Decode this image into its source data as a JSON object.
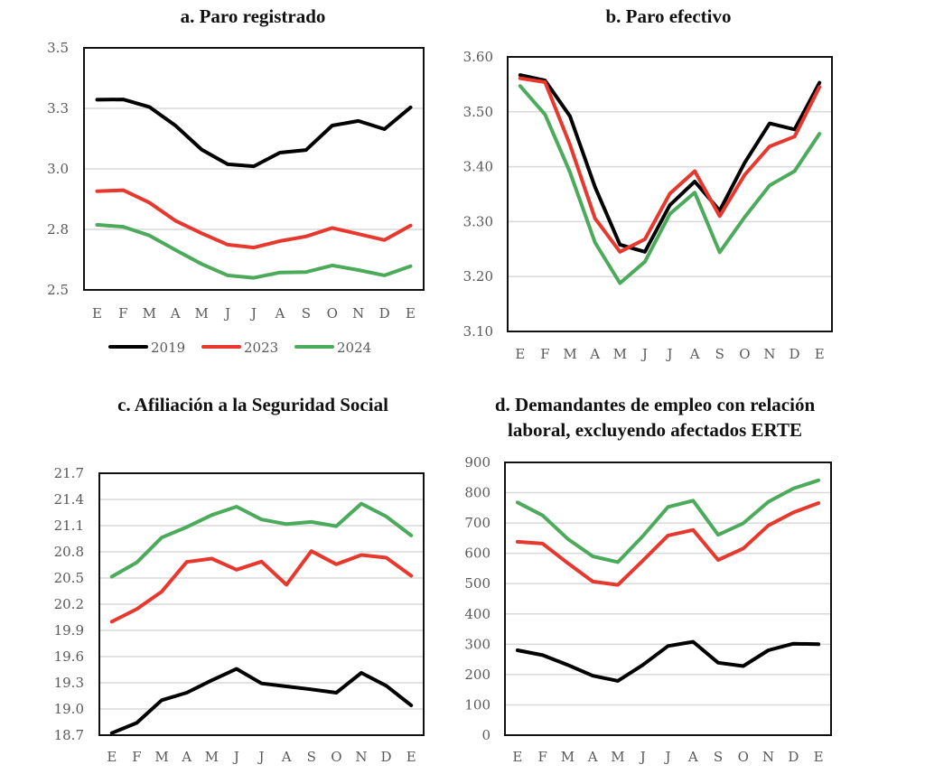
{
  "chart_data": [
    {
      "id": "a",
      "type": "line",
      "title": "a. Paro registrado",
      "xlabel": "",
      "ylabel": "",
      "categories": [
        "E",
        "F",
        "M",
        "A",
        "M",
        "J",
        "J",
        "A",
        "S",
        "O",
        "N",
        "D",
        "E"
      ],
      "ylim": [
        2.5,
        3.5
      ],
      "yticks": [
        2.5,
        2.75,
        3.0,
        3.25,
        3.5
      ],
      "ytick_labels": [
        "2.5",
        "2.8",
        "3.0",
        "3.3",
        "3.5"
      ],
      "grid": true,
      "legend": "bottom",
      "series": [
        {
          "name": "2019",
          "color": "#000000",
          "values": [
            3.286,
            3.287,
            3.256,
            3.179,
            3.08,
            3.019,
            3.011,
            3.067,
            3.078,
            3.179,
            3.198,
            3.164,
            3.254
          ]
        },
        {
          "name": "2023",
          "color": "#e8382d",
          "values": [
            2.908,
            2.912,
            2.861,
            2.786,
            2.734,
            2.687,
            2.675,
            2.702,
            2.721,
            2.756,
            2.731,
            2.706,
            2.766
          ]
        },
        {
          "name": "2024",
          "color": "#4caa5b",
          "values": [
            2.769,
            2.761,
            2.725,
            2.665,
            2.607,
            2.56,
            2.55,
            2.572,
            2.574,
            2.601,
            2.582,
            2.56,
            2.598
          ]
        }
      ]
    },
    {
      "id": "b",
      "type": "line",
      "title": "b. Paro efectivo",
      "xlabel": "",
      "ylabel": "",
      "categories": [
        "E",
        "F",
        "M",
        "A",
        "M",
        "J",
        "J",
        "A",
        "S",
        "O",
        "N",
        "D",
        "E"
      ],
      "ylim": [
        3.1,
        3.6
      ],
      "yticks": [
        3.1,
        3.2,
        3.3,
        3.4,
        3.5,
        3.6
      ],
      "ytick_labels": [
        "3.10",
        "3.20",
        "3.30",
        "3.40",
        "3.50",
        "3.60"
      ],
      "grid": true,
      "legend": "none",
      "series": [
        {
          "name": "2019",
          "color": "#000000",
          "values": [
            3.567,
            3.557,
            3.492,
            3.363,
            3.258,
            3.245,
            3.33,
            3.373,
            3.32,
            3.407,
            3.479,
            3.468,
            3.553
          ]
        },
        {
          "name": "2023",
          "color": "#e8382d",
          "values": [
            3.561,
            3.554,
            3.44,
            3.306,
            3.245,
            3.268,
            3.351,
            3.392,
            3.31,
            3.385,
            3.437,
            3.455,
            3.545
          ]
        },
        {
          "name": "2024",
          "color": "#4caa5b",
          "values": [
            3.547,
            3.495,
            3.39,
            3.262,
            3.188,
            3.227,
            3.314,
            3.353,
            3.244,
            3.308,
            3.366,
            3.392,
            3.46
          ]
        }
      ]
    },
    {
      "id": "c",
      "type": "line",
      "title": "c. Afiliación a la Seguridad Social",
      "xlabel": "",
      "ylabel": "",
      "categories": [
        "E",
        "F",
        "M",
        "A",
        "M",
        "J",
        "J",
        "A",
        "S",
        "O",
        "N",
        "D",
        "E"
      ],
      "ylim": [
        18.7,
        21.7
      ],
      "yticks": [
        18.7,
        19.0,
        19.3,
        19.6,
        19.9,
        20.2,
        20.5,
        20.8,
        21.1,
        21.4,
        21.7
      ],
      "ytick_labels": [
        "18.7",
        "19.0",
        "19.3",
        "19.6",
        "19.9",
        "20.2",
        "20.5",
        "20.8",
        "21.1",
        "21.4",
        "21.7"
      ],
      "grid": true,
      "legend": "none",
      "series": [
        {
          "name": "2019",
          "color": "#000000",
          "values": [
            18.724,
            18.841,
            19.1,
            19.186,
            19.328,
            19.459,
            19.293,
            19.259,
            19.224,
            19.186,
            19.414,
            19.266,
            19.041
          ]
        },
        {
          "name": "2023",
          "color": "#e8382d",
          "values": [
            20.0,
            20.144,
            20.344,
            20.684,
            20.722,
            20.595,
            20.688,
            20.423,
            20.808,
            20.657,
            20.764,
            20.733,
            20.526
          ]
        },
        {
          "name": "2024",
          "color": "#4caa5b",
          "values": [
            20.516,
            20.678,
            20.963,
            21.083,
            21.221,
            21.317,
            21.17,
            21.118,
            21.142,
            21.094,
            21.352,
            21.204,
            20.987
          ]
        }
      ]
    },
    {
      "id": "d",
      "type": "line",
      "title": "d. Demandantes de empleo con relación\nlaboral, excluyendo afectados ERTE",
      "xlabel": "",
      "ylabel": "",
      "categories": [
        "E",
        "F",
        "M",
        "A",
        "M",
        "J",
        "J",
        "A",
        "S",
        "O",
        "N",
        "D",
        "E"
      ],
      "ylim": [
        0,
        900
      ],
      "yticks": [
        0,
        100,
        200,
        300,
        400,
        500,
        600,
        700,
        800,
        900
      ],
      "ytick_labels": [
        "0",
        "100",
        "200",
        "300",
        "400",
        "500",
        "600",
        "700",
        "800",
        "900"
      ],
      "grid": true,
      "legend": "none",
      "series": [
        {
          "name": "2019",
          "color": "#000000",
          "values": [
            280,
            264,
            232,
            196,
            179,
            232,
            294,
            308,
            239,
            228,
            280,
            302,
            300
          ]
        },
        {
          "name": "2023",
          "color": "#e8382d",
          "values": [
            638,
            632,
            568,
            507,
            496,
            576,
            659,
            677,
            578,
            616,
            692,
            735,
            766
          ]
        },
        {
          "name": "2024",
          "color": "#4caa5b",
          "values": [
            768,
            725,
            648,
            590,
            571,
            657,
            753,
            774,
            661,
            699,
            770,
            814,
            841
          ]
        }
      ]
    }
  ],
  "legend": {
    "entries": [
      {
        "label": "2019",
        "color": "#000000"
      },
      {
        "label": "2023",
        "color": "#e8382d"
      },
      {
        "label": "2024",
        "color": "#4caa5b"
      }
    ]
  }
}
